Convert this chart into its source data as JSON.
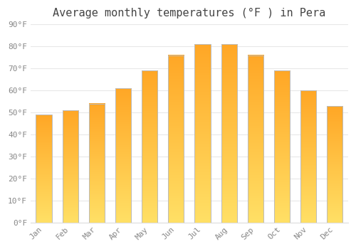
{
  "title": "Average monthly temperatures (°F ) in Pera",
  "months": [
    "Jan",
    "Feb",
    "Mar",
    "Apr",
    "May",
    "Jun",
    "Jul",
    "Aug",
    "Sep",
    "Oct",
    "Nov",
    "Dec"
  ],
  "values": [
    49,
    51,
    54,
    61,
    69,
    76,
    81,
    81,
    76,
    69,
    60,
    53
  ],
  "bar_color_top": "#FFA726",
  "bar_color_bottom": "#FFE066",
  "bar_edge_color": "#BBBBBB",
  "background_color": "#FFFFFF",
  "plot_bg_color": "#FFFFFF",
  "ylim": [
    0,
    90
  ],
  "ytick_step": 10,
  "grid_color": "#E8E8E8",
  "tick_label_color": "#888888",
  "title_fontsize": 11,
  "tick_fontsize": 8,
  "bar_width": 0.6
}
